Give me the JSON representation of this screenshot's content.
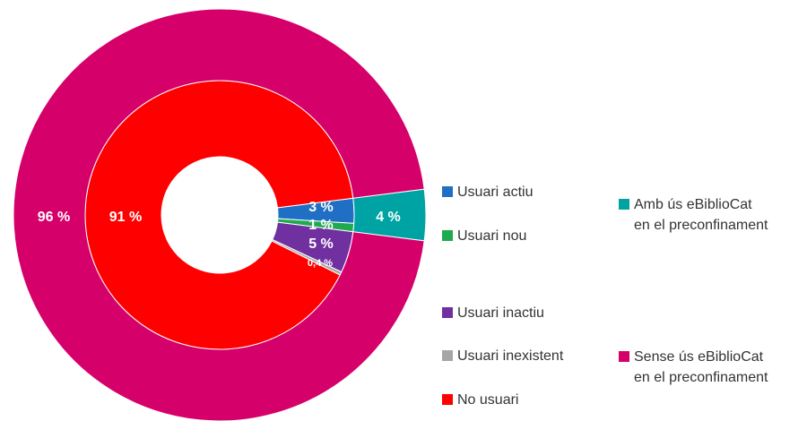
{
  "chart_data": {
    "type": "nested-donut",
    "rings": [
      {
        "categories": [
          "Usuari actiu",
          "Usuari nou",
          "Usuari inactiu",
          "Usuari inexistent",
          "No usuari"
        ],
        "values": [
          3,
          1,
          5,
          0.4,
          91
        ],
        "value_labels": [
          "3 %",
          "1 %",
          "5 %",
          "0,4 %",
          "91 %"
        ],
        "colors": [
          "#1f6fc5",
          "#1faa4f",
          "#7030a0",
          "#a6a6a6",
          "#ff0000"
        ]
      },
      {
        "categories": [
          "Amb ús eBiblioCat\nen el preconfinament",
          "Sense ús eBiblioCat\nen el preconfinament"
        ],
        "values": [
          4,
          96
        ],
        "value_labels": [
          "4 %",
          "96 %"
        ],
        "colors": [
          "#00a3a3",
          "#d6006b"
        ]
      }
    ]
  }
}
